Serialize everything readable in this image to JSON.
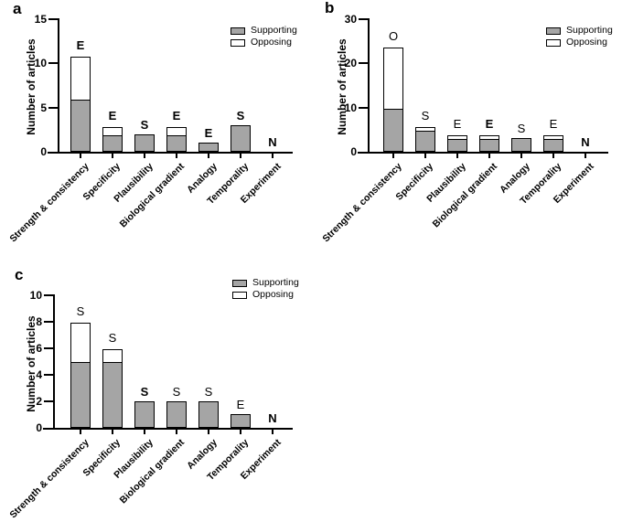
{
  "figure": {
    "background": "#ffffff",
    "colors": {
      "supporting_fill": "#a5a5a5",
      "opposing_fill": "#ffffff",
      "outline": "#000000",
      "text": "#000000"
    }
  },
  "chart_data": [
    {
      "type": "bar",
      "panel_label": "a",
      "ylabel": "Number of articles",
      "ylim": [
        0,
        15
      ],
      "yticks": [
        0,
        5,
        10,
        15
      ],
      "stacked": true,
      "grid": false,
      "legend_position": "top-right",
      "categories": [
        "Strength & consistency",
        "Specificity",
        "Plausibility",
        "Biological gradient",
        "Analogy",
        "Temporality",
        "Experiment"
      ],
      "series": [
        {
          "name": "Supporting",
          "values": [
            6,
            2,
            2,
            2,
            1,
            3,
            0
          ]
        },
        {
          "name": "Opposing",
          "values": [
            5,
            1,
            0,
            1,
            0,
            0,
            0
          ]
        }
      ],
      "totals": [
        11,
        3,
        2,
        3,
        1,
        3,
        0
      ],
      "bar_labels": [
        {
          "text": "E",
          "bold": true
        },
        {
          "text": "E",
          "bold": true
        },
        {
          "text": "S",
          "bold": true
        },
        {
          "text": "E",
          "bold": true
        },
        {
          "text": "E",
          "bold": true
        },
        {
          "text": "S",
          "bold": true
        },
        {
          "text": "N",
          "bold": true
        }
      ]
    },
    {
      "type": "bar",
      "panel_label": "b",
      "ylabel": "Number of articles",
      "ylim": [
        0,
        30
      ],
      "yticks": [
        0,
        10,
        20,
        30
      ],
      "stacked": true,
      "grid": false,
      "legend_position": "top-right",
      "categories": [
        "Strength & consistency",
        "Specificity",
        "Plausibility",
        "Biological gradient",
        "Analogy",
        "Temporality",
        "Experiment"
      ],
      "series": [
        {
          "name": "Supporting",
          "values": [
            10,
            5,
            3,
            3,
            3,
            3,
            0
          ]
        },
        {
          "name": "Opposing",
          "values": [
            14,
            1,
            1,
            1,
            0,
            1,
            0
          ]
        }
      ],
      "totals": [
        24,
        6,
        4,
        4,
        3,
        4,
        0
      ],
      "bar_labels": [
        {
          "text": "O",
          "bold": false
        },
        {
          "text": "S",
          "bold": false
        },
        {
          "text": "E",
          "bold": false
        },
        {
          "text": "E",
          "bold": true
        },
        {
          "text": "S",
          "bold": false
        },
        {
          "text": "E",
          "bold": false
        },
        {
          "text": "N",
          "bold": true
        }
      ]
    },
    {
      "type": "bar",
      "panel_label": "c",
      "ylabel": "Number of articles",
      "ylim": [
        0,
        10
      ],
      "yticks": [
        0,
        2,
        4,
        6,
        8,
        10
      ],
      "stacked": true,
      "grid": false,
      "legend_position": "top-right",
      "categories": [
        "Strength & consistency",
        "Specificity",
        "Plausibility",
        "Biological gradient",
        "Analogy",
        "Temporality",
        "Experiment"
      ],
      "series": [
        {
          "name": "Supporting",
          "values": [
            5,
            5,
            2,
            2,
            2,
            1,
            0
          ]
        },
        {
          "name": "Opposing",
          "values": [
            3,
            1,
            0,
            0,
            0,
            0,
            0
          ]
        }
      ],
      "totals": [
        8,
        6,
        2,
        2,
        2,
        1,
        0
      ],
      "bar_labels": [
        {
          "text": "S",
          "bold": false
        },
        {
          "text": "S",
          "bold": false
        },
        {
          "text": "S",
          "bold": true
        },
        {
          "text": "S",
          "bold": false
        },
        {
          "text": "S",
          "bold": false
        },
        {
          "text": "E",
          "bold": false
        },
        {
          "text": "N",
          "bold": true
        }
      ]
    }
  ]
}
